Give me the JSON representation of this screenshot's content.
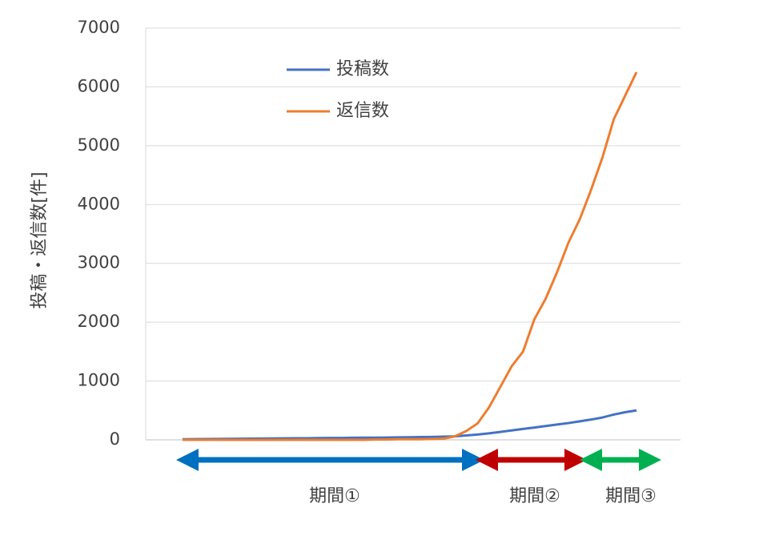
{
  "chart_data": {
    "type": "line",
    "y_label": "投稿・返信数[件]",
    "categories": [
      null,
      null,
      null,
      null,
      null,
      null,
      null,
      null,
      null,
      null,
      null,
      null,
      null,
      null,
      null,
      null,
      null,
      null,
      null,
      null,
      null,
      null,
      null,
      null,
      null,
      null,
      null,
      null,
      null,
      null,
      null,
      null,
      null,
      null,
      null,
      null,
      null,
      null,
      null,
      null,
      null
    ],
    "series": [
      {
        "name": "投稿数",
        "color": "#4472c4",
        "values": [
          10,
          12,
          14,
          15,
          17,
          18,
          20,
          22,
          24,
          25,
          27,
          28,
          30,
          32,
          33,
          35,
          37,
          38,
          40,
          42,
          45,
          48,
          50,
          55,
          60,
          75,
          90,
          110,
          135,
          160,
          185,
          210,
          235,
          260,
          285,
          315,
          345,
          380,
          430,
          470,
          500
        ]
      },
      {
        "name": "返信数",
        "color": "#ed7d31",
        "values": [
          0,
          0,
          0,
          0,
          0,
          0,
          0,
          0,
          0,
          0,
          0,
          0,
          0,
          0,
          0,
          0,
          0,
          5,
          5,
          10,
          10,
          10,
          15,
          20,
          60,
          150,
          280,
          550,
          900,
          1250,
          1500,
          2050,
          2400,
          2850,
          3350,
          3750,
          4250,
          4800,
          5450,
          5850,
          6250
        ]
      }
    ],
    "ylim": [
      0,
      7000
    ],
    "yticks": [
      0,
      1000,
      2000,
      3000,
      4000,
      5000,
      6000,
      7000
    ],
    "grid": true,
    "legend": "top-left",
    "annotations": [
      "期間①",
      "期間②",
      "期間③"
    ]
  }
}
